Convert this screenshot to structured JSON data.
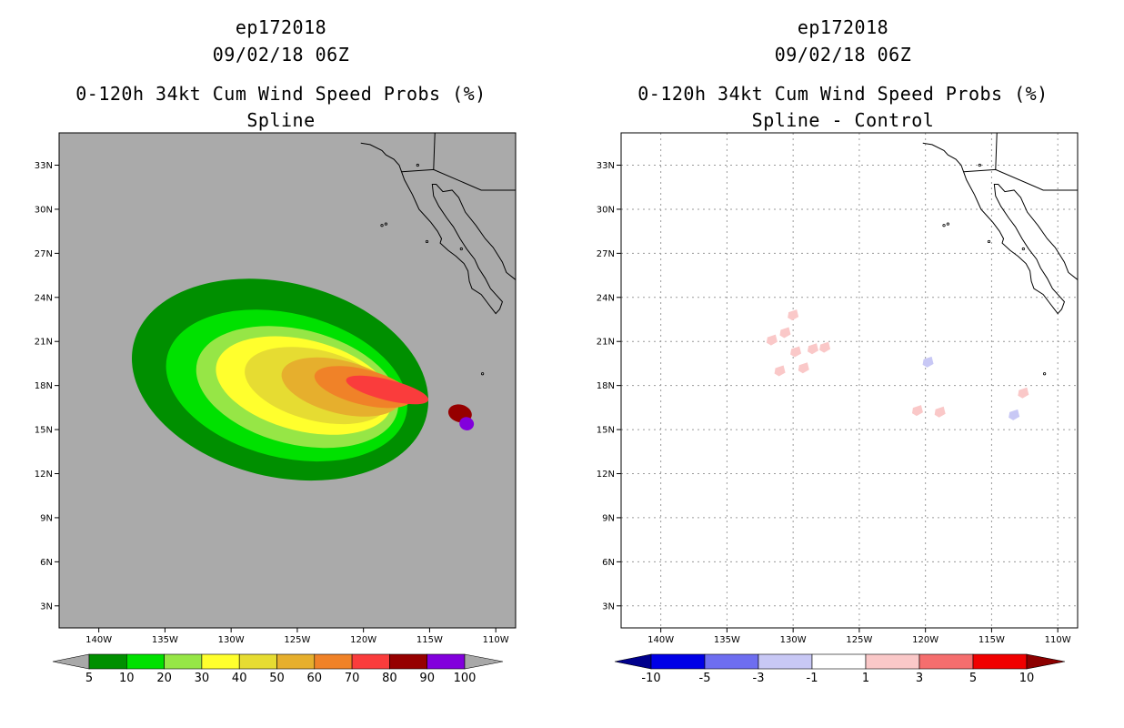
{
  "chart_data": [
    {
      "type": "heatmap",
      "storm_id": "ep172018",
      "datetime": "09/02/18 06Z",
      "title": "0-120h 34kt Cum Wind Speed Probs (%)",
      "subtitle": "Spline",
      "xlabel": "",
      "ylabel": "",
      "x_ticks": [
        "140W",
        "135W",
        "130W",
        "125W",
        "120W",
        "115W",
        "110W"
      ],
      "y_ticks": [
        "3N",
        "6N",
        "9N",
        "12N",
        "15N",
        "18N",
        "21N",
        "24N",
        "27N",
        "30N",
        "33N"
      ],
      "lon_range": [
        -143,
        -108.5
      ],
      "lat_range": [
        1.5,
        35.2
      ],
      "grid": false,
      "background_color": "#aaaaaa",
      "colorbar": {
        "levels": [
          "5",
          "10",
          "20",
          "30",
          "40",
          "50",
          "60",
          "70",
          "80",
          "90",
          "100"
        ],
        "colors": [
          "#008f00",
          "#00e100",
          "#96e646",
          "#ffff2d",
          "#e6dc32",
          "#e6af2d",
          "#f08228",
          "#fa3c3c",
          "#960000",
          "#8200dc"
        ],
        "arrow_color": "#a8a8a8"
      },
      "contours": [
        {
          "level": 5,
          "color": "#008f00",
          "center": [
            -126.3,
            18.4
          ],
          "radius": [
            11.4,
            6.6
          ]
        },
        {
          "level": 10,
          "color": "#00e100",
          "center": [
            -125.8,
            18.0
          ],
          "radius": [
            9.3,
            4.9
          ]
        },
        {
          "level": 20,
          "color": "#96e646",
          "center": [
            -125.0,
            17.9
          ],
          "radius": [
            7.8,
            3.9
          ]
        },
        {
          "level": 30,
          "color": "#ffff2d",
          "center": [
            -124.5,
            18.0
          ],
          "radius": [
            6.8,
            3.1
          ]
        },
        {
          "level": 40,
          "color": "#e6dc32",
          "center": [
            -123.5,
            18.0
          ],
          "radius": [
            5.6,
            2.4
          ]
        },
        {
          "level": 50,
          "color": "#e6af2d",
          "center": [
            -121.7,
            17.9
          ],
          "radius": [
            4.6,
            1.8
          ]
        },
        {
          "level": 60,
          "color": "#f08228",
          "center": [
            -120.0,
            17.9
          ],
          "radius": [
            3.8,
            1.2
          ]
        },
        {
          "level": 70,
          "color": "#fa3c3c",
          "center": [
            -118.2,
            17.7
          ],
          "radius": [
            3.2,
            0.7
          ]
        },
        {
          "level": 80,
          "color": "#960000",
          "center": [
            -112.7,
            16.1
          ],
          "radius": [
            0.9,
            0.6
          ]
        },
        {
          "level": 90,
          "color": "#8200dc",
          "center": [
            -112.2,
            15.4
          ],
          "radius": [
            0.55,
            0.45
          ]
        }
      ]
    },
    {
      "type": "heatmap",
      "storm_id": "ep172018",
      "datetime": "09/02/18 06Z",
      "title": "0-120h 34kt Cum Wind Speed Probs (%)",
      "subtitle": "Spline - Control",
      "xlabel": "",
      "ylabel": "",
      "x_ticks": [
        "140W",
        "135W",
        "130W",
        "125W",
        "120W",
        "115W",
        "110W"
      ],
      "y_ticks": [
        "3N",
        "6N",
        "9N",
        "12N",
        "15N",
        "18N",
        "21N",
        "24N",
        "27N",
        "30N",
        "33N"
      ],
      "lon_range": [
        -143,
        -108.5
      ],
      "lat_range": [
        1.5,
        35.2
      ],
      "grid": true,
      "background_color": "#ffffff",
      "colorbar": {
        "levels": [
          "-10",
          "-5",
          "-3",
          "-1",
          "1",
          "3",
          "5",
          "10"
        ],
        "colors": [
          "#0000e6",
          "#6e6ef0",
          "#c8c8f5",
          "#ffffff",
          "#fac8c8",
          "#f56e6e",
          "#f00000"
        ],
        "low_arrow_color": "#00008c",
        "high_arrow_color": "#8c0000"
      },
      "anomalies": [
        {
          "sign": "positive",
          "lon": -130.6,
          "lat": 21.6,
          "color": "#fac8c8"
        },
        {
          "sign": "positive",
          "lon": -131.6,
          "lat": 21.1,
          "color": "#fac8c8"
        },
        {
          "sign": "positive",
          "lon": -130.0,
          "lat": 22.8,
          "color": "#fac8c8"
        },
        {
          "sign": "positive",
          "lon": -131.0,
          "lat": 19.0,
          "color": "#fac8c8"
        },
        {
          "sign": "positive",
          "lon": -129.2,
          "lat": 19.2,
          "color": "#fac8c8"
        },
        {
          "sign": "positive",
          "lon": -129.8,
          "lat": 20.3,
          "color": "#fac8c8"
        },
        {
          "sign": "positive",
          "lon": -128.5,
          "lat": 20.5,
          "color": "#fac8c8"
        },
        {
          "sign": "positive",
          "lon": -127.6,
          "lat": 20.6,
          "color": "#fac8c8"
        },
        {
          "sign": "positive",
          "lon": -118.9,
          "lat": 16.2,
          "color": "#fac8c8"
        },
        {
          "sign": "positive",
          "lon": -120.6,
          "lat": 16.3,
          "color": "#fac8c8"
        },
        {
          "sign": "positive",
          "lon": -112.6,
          "lat": 17.5,
          "color": "#fac8c8"
        },
        {
          "sign": "negative",
          "lon": -119.8,
          "lat": 19.6,
          "color": "#c8c8f5"
        },
        {
          "sign": "negative",
          "lon": -113.3,
          "lat": 16.0,
          "color": "#c8c8f5"
        }
      ]
    }
  ]
}
